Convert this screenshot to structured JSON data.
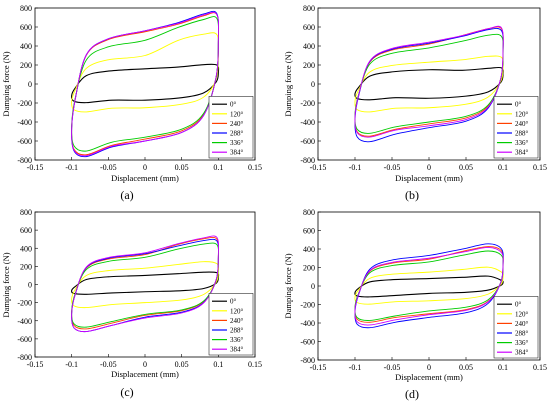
{
  "figure": {
    "panels": [
      {
        "label": "(a)",
        "xlabel": "Displacement (mm)",
        "ylabel": "Damping force (N)",
        "xticks": [
          "-0.15",
          "-0.1",
          "-0.05",
          "0",
          "0.05",
          "0.1",
          "0.15"
        ],
        "yticks": [
          "-800",
          "-600",
          "-400",
          "-200",
          "0",
          "200",
          "400",
          "600",
          "800"
        ]
      },
      {
        "label": "(b)",
        "xlabel": "Displacement (mm)",
        "ylabel": "Damping force (N)",
        "xticks": [
          "-0.15",
          "-0.1",
          "-0.05",
          "0",
          "0.05",
          "0.1",
          "0.15"
        ],
        "yticks": [
          "-800",
          "-600",
          "-400",
          "-200",
          "0",
          "200",
          "400",
          "600",
          "800"
        ]
      },
      {
        "label": "(c)",
        "xlabel": "Displacement (mm)",
        "ylabel": "Damping force (N)",
        "xticks": [
          "-0.15",
          "-0.1",
          "-0.05",
          "0",
          "0.05",
          "0.1",
          "0.15"
        ],
        "yticks": [
          "-800",
          "-600",
          "-400",
          "-200",
          "0",
          "200",
          "400",
          "600",
          "800"
        ]
      },
      {
        "label": "(d)",
        "xlabel": "Displacement (mm)",
        "ylabel": "Damping force (N)",
        "xticks": [
          "-0.15",
          "-0.1",
          "-0.05",
          "0",
          "0.05",
          "0.1",
          "0.15"
        ],
        "yticks": [
          "-800",
          "-600",
          "-400",
          "-200",
          "0",
          "200",
          "400",
          "600",
          "800"
        ]
      }
    ]
  },
  "chart_data": [
    {
      "type": "line",
      "title": "",
      "panel_label": "(a)",
      "xlabel": "Displacement (mm)",
      "ylabel": "Damping force (N)",
      "xlim": [
        -0.15,
        0.15
      ],
      "ylim": [
        -800,
        800
      ],
      "legend_placement": "lower-right",
      "series": [
        {
          "name": "0°",
          "color": "#000000",
          "xmax": 0.1,
          "ymin": -200,
          "ymax": 210,
          "y_at_max_disp": 200,
          "y_at_zero_up": 160,
          "y_at_zero_down": -170
        },
        {
          "name": "120°",
          "color": "#ffff00",
          "xmax": 0.1,
          "ymin": -300,
          "ymax": 540,
          "y_at_max_disp": 520,
          "y_at_zero_up": 300,
          "y_at_zero_down": -250
        },
        {
          "name": "240°",
          "color": "#ff4000",
          "xmax": 0.1,
          "ymin": -760,
          "ymax": 740,
          "y_at_max_disp": 730,
          "y_at_zero_up": 550,
          "y_at_zero_down": -580
        },
        {
          "name": "288°",
          "color": "#0000ff",
          "xmax": 0.1,
          "ymin": -780,
          "ymax": 760,
          "y_at_max_disp": 740,
          "y_at_zero_up": 560,
          "y_at_zero_down": -600
        },
        {
          "name": "336°",
          "color": "#00cc00",
          "xmax": 0.1,
          "ymin": -720,
          "ymax": 700,
          "y_at_max_disp": 690,
          "y_at_zero_up": 460,
          "y_at_zero_down": -560
        },
        {
          "name": "384°",
          "color": "#cc00ff",
          "xmax": 0.1,
          "ymin": -770,
          "ymax": 750,
          "y_at_max_disp": 730,
          "y_at_zero_up": 560,
          "y_at_zero_down": -600
        }
      ]
    },
    {
      "type": "line",
      "title": "",
      "panel_label": "(b)",
      "xlabel": "Displacement (mm)",
      "ylabel": "Damping force (N)",
      "xlim": [
        -0.15,
        0.15
      ],
      "ylim": [
        -800,
        800
      ],
      "legend_placement": "lower-right",
      "series": [
        {
          "name": "0°",
          "color": "#000000",
          "xmax": 0.1,
          "ymin": -170,
          "ymax": 170,
          "y_at_max_disp": 170,
          "y_at_zero_up": 150,
          "y_at_zero_down": -150
        },
        {
          "name": "120°",
          "color": "#ffff00",
          "xmax": 0.1,
          "ymin": -300,
          "ymax": 300,
          "y_at_max_disp": 280,
          "y_at_zero_up": 230,
          "y_at_zero_down": -250
        },
        {
          "name": "240°",
          "color": "#ff4000",
          "xmax": 0.1,
          "ymin": -560,
          "ymax": 600,
          "y_at_max_disp": 580,
          "y_at_zero_up": 420,
          "y_at_zero_down": -420
        },
        {
          "name": "288°",
          "color": "#0000ff",
          "xmax": 0.1,
          "ymin": -620,
          "ymax": 590,
          "y_at_max_disp": 560,
          "y_at_zero_up": 430,
          "y_at_zero_down": -460
        },
        {
          "name": "336°",
          "color": "#00cc00",
          "xmax": 0.1,
          "ymin": -530,
          "ymax": 530,
          "y_at_max_disp": 500,
          "y_at_zero_up": 380,
          "y_at_zero_down": -400
        },
        {
          "name": "384°",
          "color": "#cc00ff",
          "xmax": 0.1,
          "ymin": -570,
          "ymax": 600,
          "y_at_max_disp": 590,
          "y_at_zero_up": 440,
          "y_at_zero_down": -440
        }
      ]
    },
    {
      "type": "line",
      "title": "",
      "panel_label": "(c)",
      "xlabel": "Displacement (mm)",
      "ylabel": "Damping force (N)",
      "xlim": [
        -0.15,
        0.15
      ],
      "ylim": [
        -800,
        800
      ],
      "legend_placement": "lower-right",
      "series": [
        {
          "name": "0°",
          "color": "#000000",
          "xmax": 0.1,
          "ymin": -110,
          "ymax": 140,
          "y_at_max_disp": 130,
          "y_at_zero_up": 100,
          "y_at_zero_down": -80
        },
        {
          "name": "120°",
          "color": "#ffff00",
          "xmax": 0.1,
          "ymin": -260,
          "ymax": 260,
          "y_at_max_disp": 230,
          "y_at_zero_up": 180,
          "y_at_zero_down": -200
        },
        {
          "name": "240°",
          "color": "#ff4000",
          "xmax": 0.1,
          "ymin": -500,
          "ymax": 520,
          "y_at_max_disp": 500,
          "y_at_zero_up": 330,
          "y_at_zero_down": -340
        },
        {
          "name": "288°",
          "color": "#0000ff",
          "xmax": 0.1,
          "ymin": -530,
          "ymax": 500,
          "y_at_max_disp": 480,
          "y_at_zero_up": 340,
          "y_at_zero_down": -360
        },
        {
          "name": "336°",
          "color": "#00cc00",
          "xmax": 0.1,
          "ymin": -480,
          "ymax": 460,
          "y_at_max_disp": 440,
          "y_at_zero_up": 300,
          "y_at_zero_down": -330
        },
        {
          "name": "384°",
          "color": "#cc00ff",
          "xmax": 0.1,
          "ymin": -530,
          "ymax": 530,
          "y_at_max_disp": 520,
          "y_at_zero_up": 350,
          "y_at_zero_down": -370
        }
      ]
    },
    {
      "type": "line",
      "title": "",
      "panel_label": "(d)",
      "xlabel": "Displacement (mm)",
      "ylabel": "Damping force (N)",
      "xlim": [
        -0.15,
        0.15
      ],
      "ylim": [
        -800,
        800
      ],
      "legend_placement": "lower-right",
      "series": [
        {
          "name": "0°",
          "color": "#000000",
          "xmax": 0.1,
          "ymin": -120,
          "ymax": 110,
          "y_at_max_disp": 60,
          "y_at_zero_up": 80,
          "y_at_zero_down": -80
        },
        {
          "name": "120°",
          "color": "#ffff00",
          "xmax": 0.1,
          "ymin": -200,
          "ymax": 210,
          "y_at_max_disp": 150,
          "y_at_zero_up": 150,
          "y_at_zero_down": -160
        },
        {
          "name": "240°",
          "color": "#ff4000",
          "xmax": 0.1,
          "ymin": -400,
          "ymax": 440,
          "y_at_max_disp": 380,
          "y_at_zero_up": 290,
          "y_at_zero_down": -300
        },
        {
          "name": "288°",
          "color": "#0000ff",
          "xmax": 0.1,
          "ymin": -460,
          "ymax": 470,
          "y_at_max_disp": 400,
          "y_at_zero_up": 330,
          "y_at_zero_down": -340
        },
        {
          "name": "336°",
          "color": "#00cc00",
          "xmax": 0.1,
          "ymin": -380,
          "ymax": 390,
          "y_at_max_disp": 330,
          "y_at_zero_up": 260,
          "y_at_zero_down": -270
        },
        {
          "name": "384°",
          "color": "#cc00ff",
          "xmax": 0.1,
          "ymin": -430,
          "ymax": 430,
          "y_at_max_disp": 360,
          "y_at_zero_up": 300,
          "y_at_zero_down": -310
        }
      ]
    }
  ]
}
